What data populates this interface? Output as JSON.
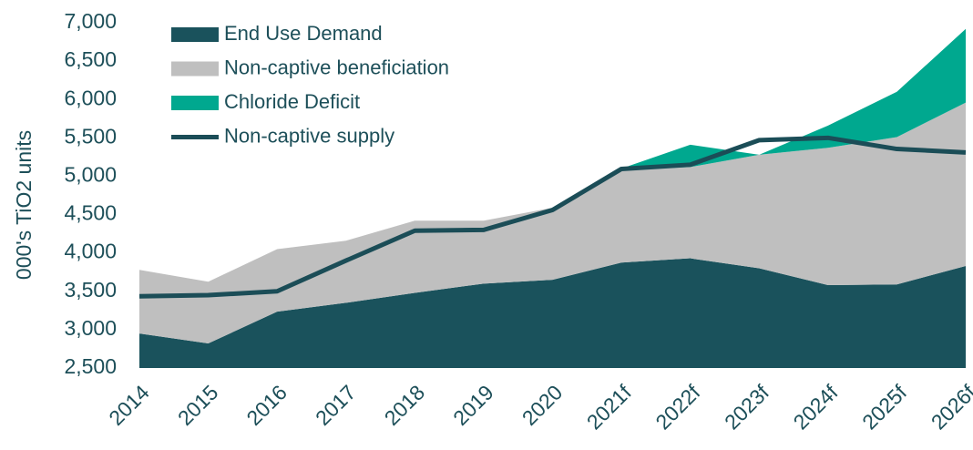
{
  "chart_data": {
    "type": "area",
    "y_label": "000's TiO2 units",
    "categories": [
      "2014",
      "2015",
      "2016",
      "2017",
      "2018",
      "2019",
      "2020",
      "2021f",
      "2022f",
      "2023f",
      "2024f",
      "2025f",
      "2026f"
    ],
    "series": [
      {
        "name": "End Use Demand",
        "type": "area",
        "color": "#1a525c",
        "values": [
          2950,
          2820,
          3235,
          3350,
          3480,
          3600,
          3650,
          3875,
          3930,
          3800,
          3580,
          3590,
          3830
        ]
      },
      {
        "name": "Non-captive beneficiation",
        "type": "area",
        "color": "#bfbfbf",
        "values": [
          830,
          805,
          815,
          810,
          940,
          820,
          940,
          1205,
          1190,
          1480,
          1790,
          1920,
          2130
        ]
      },
      {
        "name": "Chloride Deficit",
        "type": "area",
        "color": "#00a88f",
        "values": [
          0,
          0,
          0,
          0,
          0,
          0,
          0,
          20,
          290,
          0,
          290,
          590,
          960
        ]
      },
      {
        "name": "Non-captive supply",
        "type": "line",
        "color": "#1b4d57",
        "values": [
          3435,
          3450,
          3500,
          3900,
          4290,
          4300,
          4560,
          5095,
          5150,
          5470,
          5500,
          5355,
          5310
        ]
      }
    ],
    "ylim": [
      2500,
      7000
    ],
    "yticks": [
      {
        "value": 2500,
        "label": "2,500"
      },
      {
        "value": 3000,
        "label": "3,000"
      },
      {
        "value": 3500,
        "label": "3,500"
      },
      {
        "value": 4000,
        "label": "4,000"
      },
      {
        "value": 4500,
        "label": "4,500"
      },
      {
        "value": 5000,
        "label": "5,000"
      },
      {
        "value": 5500,
        "label": "5,500"
      },
      {
        "value": 6000,
        "label": "6,000"
      },
      {
        "value": 6500,
        "label": "6,500"
      },
      {
        "value": 7000,
        "label": "7,000"
      }
    ],
    "legend": "top-left"
  }
}
